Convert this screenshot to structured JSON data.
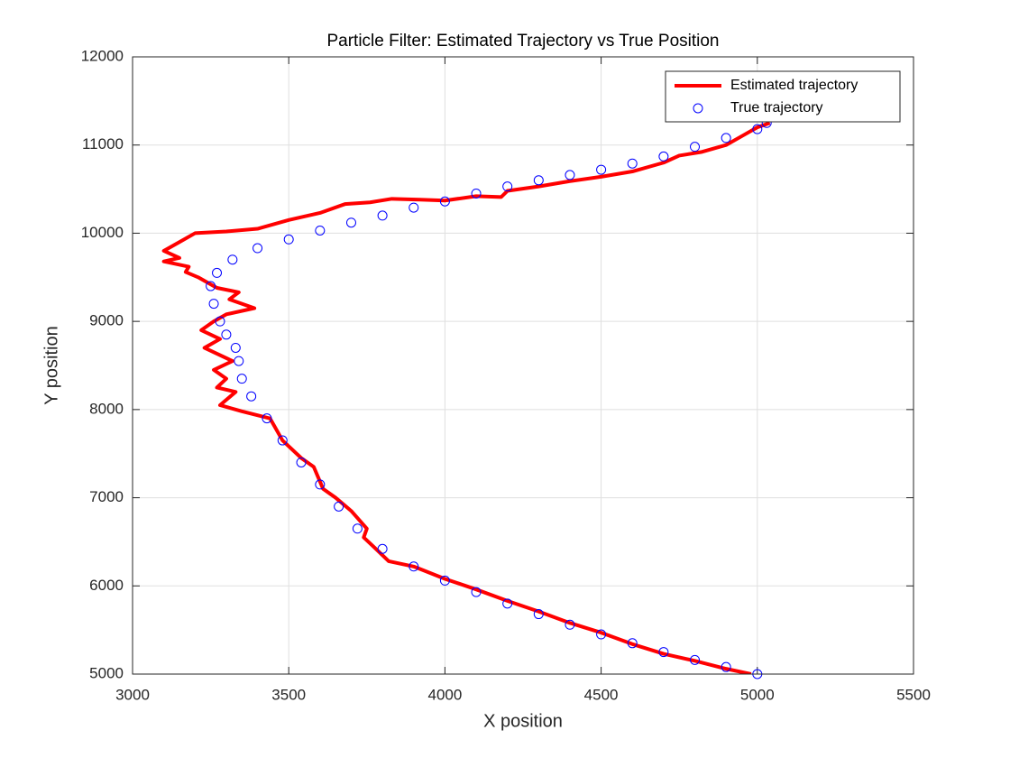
{
  "chart_data": {
    "type": "line",
    "title": "Particle Filter: Estimated Trajectory vs True Position",
    "xlabel": "X position",
    "ylabel": "Y position",
    "xlim": [
      3000,
      5500
    ],
    "ylim": [
      5000,
      12000
    ],
    "xticks": [
      3000,
      3500,
      4000,
      4500,
      5000,
      5500
    ],
    "yticks": [
      5000,
      6000,
      7000,
      8000,
      9000,
      10000,
      11000,
      12000
    ],
    "grid": true,
    "legend": "northeast",
    "series": [
      {
        "name": "Estimated trajectory",
        "color": "#ff0000",
        "mode": "line",
        "x": [
          4980,
          4900,
          4800,
          4700,
          4600,
          4500,
          4400,
          4300,
          4200,
          4100,
          4000,
          3900,
          3820,
          3770,
          3740,
          3750,
          3700,
          3650,
          3610,
          3580,
          3540,
          3480,
          3440,
          3350,
          3280,
          3330,
          3270,
          3300,
          3260,
          3320,
          3230,
          3280,
          3220,
          3260,
          3300,
          3390,
          3310,
          3340,
          3270,
          3210,
          3170,
          3180,
          3100,
          3150,
          3100,
          3150,
          3200,
          3300,
          3400,
          3500,
          3600,
          3680,
          3760,
          3830,
          3920,
          4000,
          4100,
          4180,
          4200,
          4300,
          4400,
          4500,
          4600,
          4700,
          4750,
          4820,
          4900,
          4950,
          5000,
          5040
        ],
        "values": [
          5000,
          5060,
          5150,
          5230,
          5340,
          5470,
          5580,
          5710,
          5830,
          5960,
          6080,
          6220,
          6280,
          6450,
          6550,
          6650,
          6850,
          7000,
          7100,
          7350,
          7450,
          7650,
          7900,
          7980,
          8050,
          8200,
          8250,
          8350,
          8450,
          8550,
          8700,
          8800,
          8900,
          9000,
          9080,
          9150,
          9250,
          9330,
          9380,
          9500,
          9560,
          9620,
          9680,
          9720,
          9800,
          9900,
          10000,
          10020,
          10050,
          10150,
          10230,
          10330,
          10350,
          10390,
          10380,
          10370,
          10420,
          10410,
          10480,
          10530,
          10590,
          10640,
          10700,
          10800,
          10880,
          10920,
          11000,
          11100,
          11200,
          11250
        ]
      },
      {
        "name": "True trajectory",
        "color": "#0000ff",
        "mode": "markers",
        "x": [
          5000,
          4900,
          4800,
          4700,
          4600,
          4500,
          4400,
          4300,
          4200,
          4100,
          4000,
          3900,
          3800,
          3720,
          3660,
          3600,
          3540,
          3480,
          3430,
          3380,
          3350,
          3340,
          3330,
          3300,
          3280,
          3260,
          3250,
          3270,
          3320,
          3400,
          3500,
          3600,
          3700,
          3800,
          3900,
          4000,
          4100,
          4200,
          4300,
          4400,
          4500,
          4600,
          4700,
          4800,
          4900,
          5000,
          5030
        ],
        "values": [
          5000,
          5080,
          5160,
          5250,
          5350,
          5450,
          5560,
          5680,
          5800,
          5930,
          6060,
          6220,
          6420,
          6650,
          6900,
          7150,
          7400,
          7650,
          7900,
          8150,
          8350,
          8550,
          8700,
          8850,
          9000,
          9200,
          9400,
          9550,
          9700,
          9830,
          9930,
          10030,
          10120,
          10200,
          10290,
          10360,
          10450,
          10530,
          10600,
          10660,
          10720,
          10790,
          10870,
          10980,
          11080,
          11180,
          11250
        ]
      }
    ]
  }
}
